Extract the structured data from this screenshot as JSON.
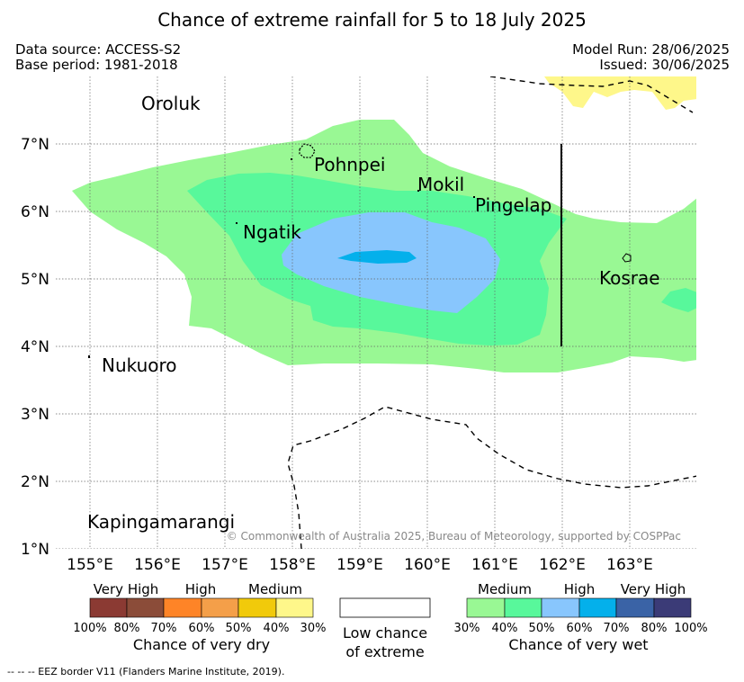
{
  "title": "Chance of extreme rainfall for 5 to 18 July 2025",
  "meta": {
    "data_source": "Data source: ACCESS-S2",
    "base_period": "Base period: 1981-2018",
    "model_run": "Model Run: 28/06/2025",
    "issued": "Issued: 30/06/2025"
  },
  "axes": {
    "lon_labels": [
      "155°E",
      "156°E",
      "157°E",
      "158°E",
      "159°E",
      "160°E",
      "161°E",
      "162°E",
      "163°E"
    ],
    "lat_labels": [
      "7°N",
      "6°N",
      "5°N",
      "4°N",
      "3°N",
      "2°N",
      "1°N"
    ]
  },
  "places": [
    "Oroluk",
    "Pohnpei",
    "Mokil",
    "Pingelap",
    "Ngatik",
    "Kosrae",
    "Nukuoro",
    "Kapingamarangi"
  ],
  "copyright": "© Commonwealth of Australia 2025, Bureau of Meteorology, supported by COSPPac",
  "colors": {
    "wet_30_40": "#99f894",
    "wet_40_50": "#58f89b",
    "wet_50_60": "#88c6fd",
    "wet_60_70": "#04b0eb",
    "wet_70_80": "#3a63a6",
    "wet_80_100": "#3b3b77",
    "dry_30_40": "#fef78a",
    "dry_40_50": "#f1ca0b",
    "dry_50_60": "#f49f49",
    "dry_60_70": "#fe8427",
    "dry_70_80": "#8b4c39",
    "dry_80_100": "#8b3a33"
  },
  "legend": {
    "dry": {
      "categories": [
        "Very High",
        "High",
        "Medium"
      ],
      "ticks": [
        "100%",
        "80%",
        "70%",
        "60%",
        "50%",
        "40%",
        "30%"
      ],
      "title": "Chance of very dry"
    },
    "neutral": {
      "title_line1": "Low chance",
      "title_line2": "of extreme"
    },
    "wet": {
      "categories": [
        "Medium",
        "High",
        "Very High"
      ],
      "ticks": [
        "30%",
        "40%",
        "50%",
        "60%",
        "70%",
        "80%",
        "100%"
      ],
      "title": "Chance of very wet"
    }
  },
  "footnote": "--  --  -- EEZ border V11 (Flanders Marine Institute, 2019)."
}
